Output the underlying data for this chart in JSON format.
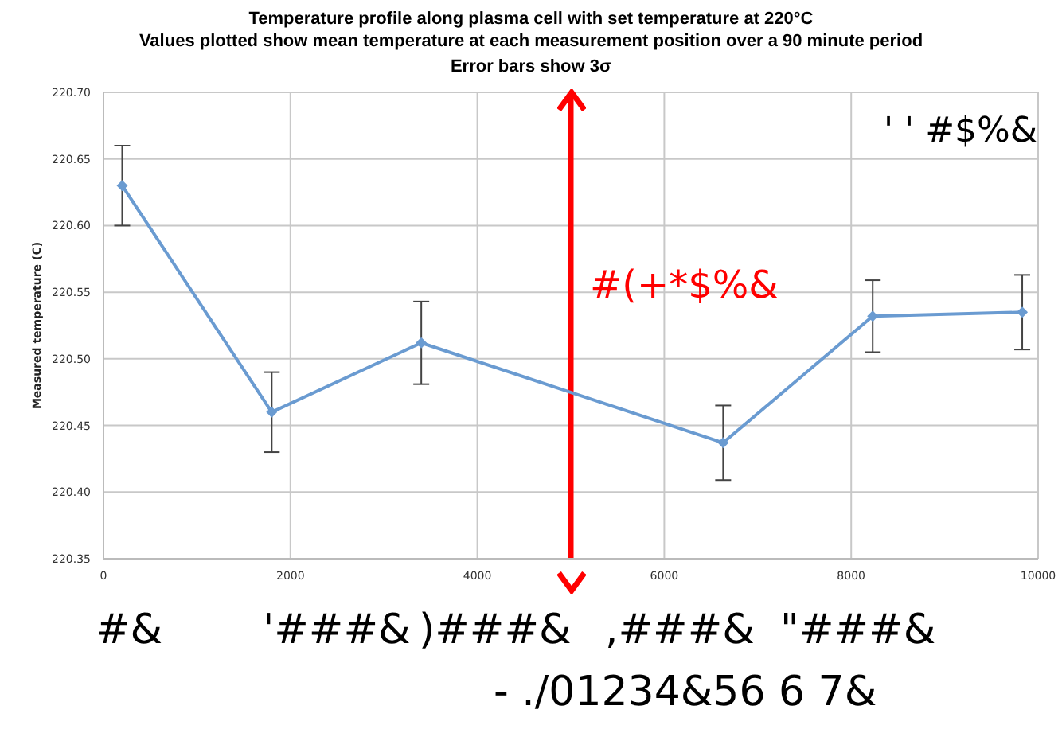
{
  "chart_data": {
    "type": "line",
    "title": "Temperature profile along plasma cell with set temperature at 220°C",
    "subtitle": "Values plotted show mean temperature at each measurement position over a 90 minute period",
    "ylabel": "Measured temperature (C)",
    "x": [
      200,
      1800,
      3400,
      6630,
      8230,
      9830
    ],
    "series": [
      {
        "color": "#6a9bd1",
        "values": [
          220.63,
          220.46,
          220.512,
          220.437,
          220.532,
          220.535
        ],
        "errors": [
          0.03,
          0.03,
          0.031,
          0.028,
          0.027,
          0.028
        ]
      }
    ],
    "xlim": [
      0,
      10000
    ],
    "xticks": [
      0,
      2000,
      4000,
      6000,
      8000,
      10000
    ],
    "ylim": [
      220.35,
      220.7
    ],
    "yticks": [
      {
        "value": 220.35,
        "label": "220.35"
      },
      {
        "value": 220.4,
        "label": "220.40"
      },
      {
        "value": 220.45,
        "label": "220.45"
      },
      {
        "value": 220.5,
        "label": "220.50"
      },
      {
        "value": 220.55,
        "label": "220.55"
      },
      {
        "value": 220.6,
        "label": "220.60"
      },
      {
        "value": 220.65,
        "label": "220.65"
      },
      {
        "value": 220.7,
        "label": "220.70"
      }
    ],
    "grid": true,
    "marker": "diamond",
    "line_style": "solid",
    "ref_lines": [
      {
        "axis": "x",
        "value": 5000,
        "label": "#(+*$%&",
        "color": "#ff0000"
      }
    ],
    "annotations": [
      "Error bars show 3σ",
      "' ' #$%&",
      "#&",
      "'###&",
      ")###&",
      ",###&",
      "\"###&",
      "- ./01234&56 6 7&"
    ]
  }
}
